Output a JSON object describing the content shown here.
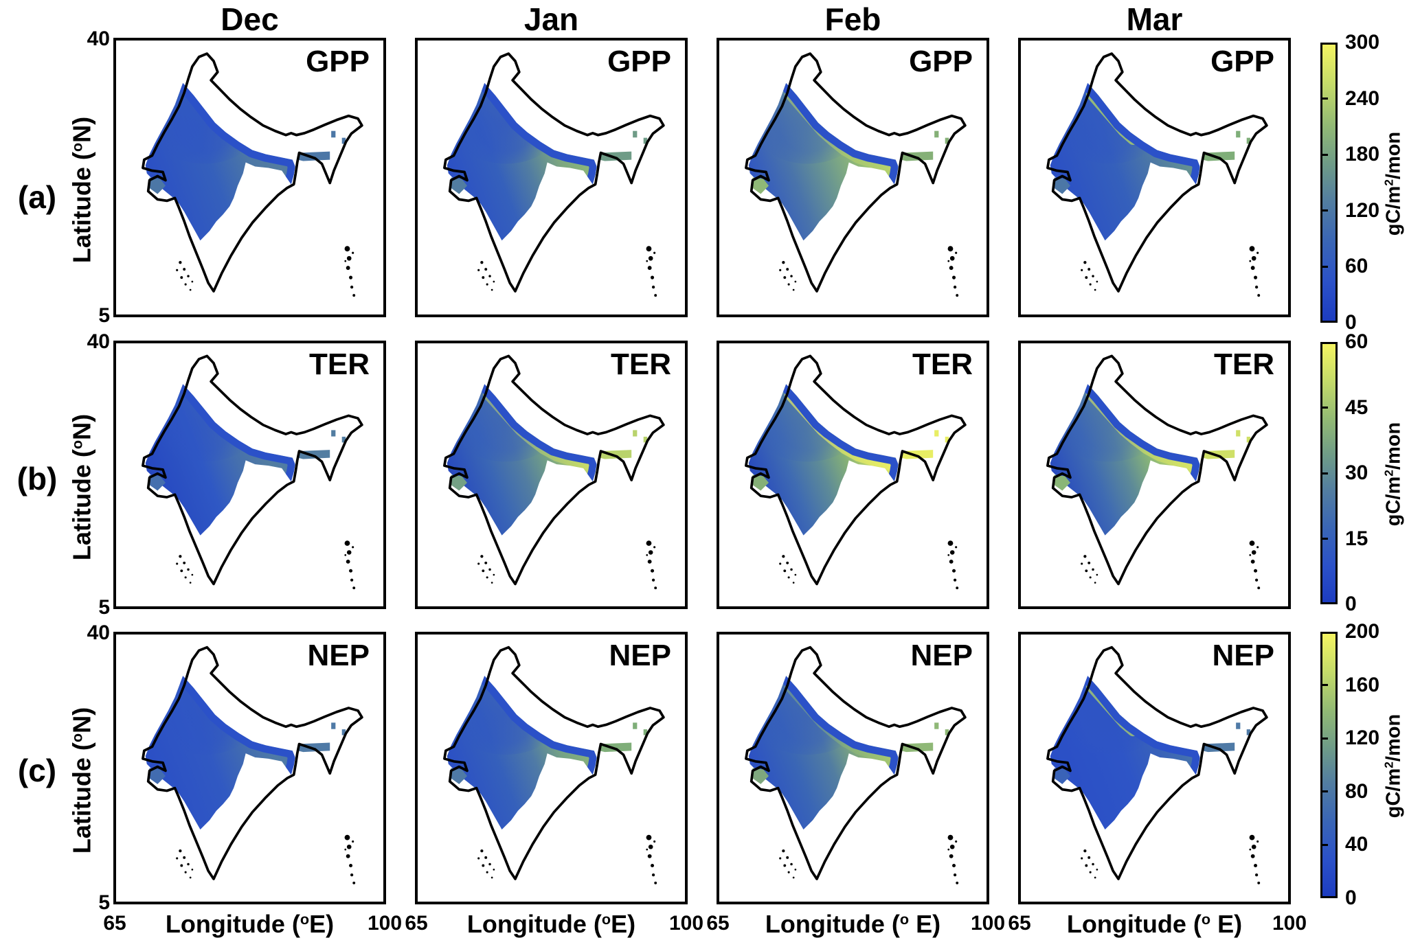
{
  "figure": {
    "background": "#ffffff",
    "columns": [
      "Dec",
      "Jan",
      "Feb",
      "Mar"
    ],
    "row_labels": [
      "(a)",
      "(b)",
      "(c)"
    ],
    "variables": [
      "GPP",
      "TER",
      "NEP"
    ],
    "y_axis": {
      "label": "Latitude (°N)",
      "label_parts": [
        "Latitude (",
        "o",
        "N)"
      ],
      "tick_top": "40",
      "tick_bottom": "5"
    },
    "x_axis": {
      "tick_left": "65",
      "tick_right": "100",
      "label": "Longitude (°E)",
      "labels_parts": [
        [
          "Longitude (",
          "o",
          "E)"
        ],
        [
          "Longitude (",
          "o",
          "E)"
        ],
        [
          "Longitude (",
          "o",
          " E)"
        ],
        [
          "Longitude (",
          "o",
          " E)"
        ]
      ]
    },
    "colorbars": [
      {
        "row": "(a)",
        "variable": "GPP",
        "ticks": [
          "300",
          "240",
          "180",
          "120",
          "60",
          "0"
        ],
        "unit": "gC/m²/mon",
        "unit_parts": [
          "gC/m",
          "2",
          "/mon"
        ]
      },
      {
        "row": "(b)",
        "variable": "TER",
        "ticks": [
          "60",
          "45",
          "30",
          "15",
          "0"
        ],
        "unit": "gC/m²/mon",
        "unit_parts": [
          "gC/m",
          "2",
          "/mon"
        ]
      },
      {
        "row": "(c)",
        "variable": "NEP",
        "ticks": [
          "200",
          "160",
          "120",
          "80",
          "40",
          "0"
        ],
        "unit": "gC/m²/mon",
        "unit_parts": [
          "gC/m",
          "2",
          "/mon"
        ]
      }
    ]
  },
  "chart_data": {
    "type": "heatmap",
    "region": "India",
    "title": "Monthly GPP, TER and NEP over India (Dec–Mar)",
    "columns": [
      "Dec",
      "Jan",
      "Feb",
      "Mar"
    ],
    "rows": [
      {
        "label": "(a)",
        "variable": "GPP",
        "unit": "gC/m2/mon",
        "scale_range": [
          0,
          300
        ],
        "ticks": [
          0,
          60,
          120,
          180,
          240,
          300
        ]
      },
      {
        "label": "(b)",
        "variable": "TER",
        "unit": "gC/m2/mon",
        "scale_range": [
          0,
          60
        ],
        "ticks": [
          0,
          15,
          30,
          45,
          60
        ]
      },
      {
        "label": "(c)",
        "variable": "NEP",
        "unit": "gC/m2/mon",
        "scale_range": [
          0,
          200
        ],
        "ticks": [
          0,
          40,
          80,
          120,
          160,
          200
        ]
      }
    ],
    "x_axis": {
      "label": "Longitude (°E)",
      "range": [
        65,
        100
      ],
      "ticks": [
        65,
        100
      ]
    },
    "y_axis": {
      "label": "Latitude (°N)",
      "range": [
        5,
        40
      ],
      "ticks": [
        5,
        40
      ]
    },
    "colormap": {
      "style": "blue-green-yellow (parula-like), low=dark blue, high=yellow",
      "stops": [
        "#1c3cc0",
        "#2b51c8",
        "#3a66b5",
        "#527da1",
        "#6f9c87",
        "#93ba74",
        "#c6dc69",
        "#f4f462"
      ]
    },
    "coverage": "Data shown over the Indo-Gangetic Plain, NW India, Gujarat and the Brahmaputra valley; white inside outline = no data (Himalaya, peninsular plateau, NE hills); black dots mark Lakshadweep and Andaman islands",
    "panels": [
      {
        "variable": "GPP",
        "month": "Dec",
        "approx_values": "plains mostly 30-150 gC/m2/mon; blue overall with weak green tinge in central plains"
      },
      {
        "variable": "GPP",
        "month": "Jan",
        "approx_values": "eastern plains 150-220 (green); NW core and southern wedge 30-90 (blue)"
      },
      {
        "variable": "GPP",
        "month": "Feb",
        "approx_values": "plains 180-260 (green to yellow-green), maximum toward Bengal; southern wedge 60-120"
      },
      {
        "variable": "GPP",
        "month": "Mar",
        "approx_values": "mostly 60-150; green band 180-220 along NW Himalayan foothills"
      },
      {
        "variable": "TER",
        "month": "Dec",
        "approx_values": "mostly 5-30; teal 20-30 in central-eastern plains"
      },
      {
        "variable": "TER",
        "month": "Jan",
        "approx_values": "eastern plains 40-55 (yellow-green); west and south 10-30"
      },
      {
        "variable": "TER",
        "month": "Feb",
        "approx_values": "eastern plains 50-60 (yellow); center 30-45; southern wedge 10-25"
      },
      {
        "variable": "TER",
        "month": "Mar",
        "approx_values": "plains broadly 40-58 (yellow-green); southern wedge 15-30"
      },
      {
        "variable": "NEP",
        "month": "Dec",
        "approx_values": "mostly 20-80; teal patch in central plains"
      },
      {
        "variable": "NEP",
        "month": "Jan",
        "approx_values": "central-eastern plains 90-140 (green); NW and south 20-60"
      },
      {
        "variable": "NEP",
        "month": "Feb",
        "approx_values": "central-eastern plains 100-160 (green/yellow-green); southern wedge 30-60"
      },
      {
        "variable": "NEP",
        "month": "Mar",
        "approx_values": "mostly 10-60 (blue); green band 100-140 along NW foothills"
      }
    ]
  }
}
